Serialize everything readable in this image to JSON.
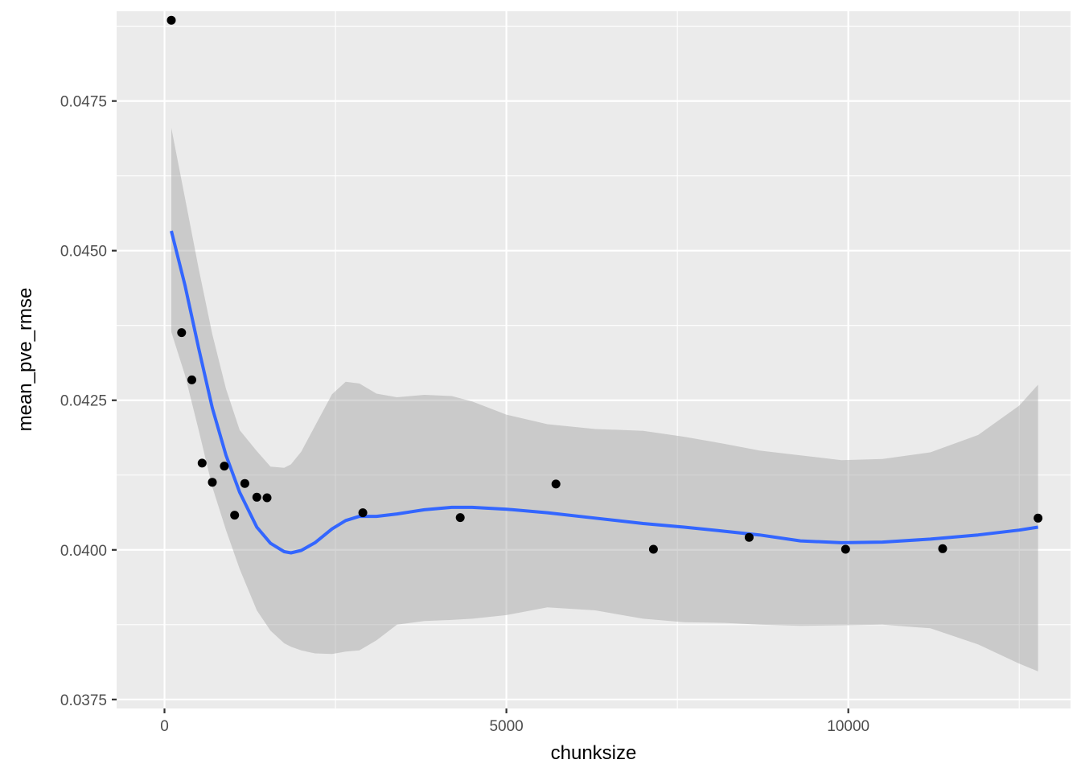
{
  "chart_data": {
    "type": "scatter",
    "title": "",
    "xlabel": "chunksize",
    "ylabel": "mean_pve_rmse",
    "xlim": [
      -700,
      13250
    ],
    "ylim": [
      0.03735,
      0.049
    ],
    "xticks": [
      0,
      5000,
      10000
    ],
    "xtick_labels": [
      "0",
      "5000",
      "10000"
    ],
    "yticks": [
      0.0375,
      0.04,
      0.0425,
      0.045,
      0.0475
    ],
    "ytick_labels": [
      "0.0375",
      "0.0400",
      "0.0425",
      "0.0450",
      "0.0475"
    ],
    "grid": true,
    "panel_background": "#ebebeb",
    "colors": {
      "points": "#000000",
      "smooth_line": "#3366ff",
      "ribbon": "#c8c8c8"
    },
    "points": [
      {
        "x": 100,
        "y": 0.04885
      },
      {
        "x": 250,
        "y": 0.04363
      },
      {
        "x": 400,
        "y": 0.04284
      },
      {
        "x": 550,
        "y": 0.04145
      },
      {
        "x": 700,
        "y": 0.04113
      },
      {
        "x": 875,
        "y": 0.0414
      },
      {
        "x": 1025,
        "y": 0.04058
      },
      {
        "x": 1175,
        "y": 0.04111
      },
      {
        "x": 1350,
        "y": 0.04088
      },
      {
        "x": 1500,
        "y": 0.04087
      },
      {
        "x": 2900,
        "y": 0.04062
      },
      {
        "x": 4325,
        "y": 0.04054
      },
      {
        "x": 5725,
        "y": 0.0411
      },
      {
        "x": 7150,
        "y": 0.04001
      },
      {
        "x": 8550,
        "y": 0.04021
      },
      {
        "x": 9960,
        "y": 0.04001
      },
      {
        "x": 11380,
        "y": 0.04002
      },
      {
        "x": 12775,
        "y": 0.04053
      }
    ],
    "smooth": {
      "x": [
        100,
        300,
        500,
        700,
        900,
        1100,
        1350,
        1550,
        1750,
        1850,
        2000,
        2200,
        2450,
        2650,
        2850,
        3100,
        3400,
        3800,
        4200,
        4500,
        5000,
        5600,
        6300,
        7000,
        7600,
        8200,
        8700,
        9300,
        9900,
        10500,
        11200,
        11900,
        12500,
        12775
      ],
      "y": [
        0.04533,
        0.04442,
        0.04337,
        0.04237,
        0.04158,
        0.04096,
        0.04038,
        0.04011,
        0.03997,
        0.03995,
        0.03999,
        0.04012,
        0.04035,
        0.04049,
        0.04056,
        0.04056,
        0.0406,
        0.04067,
        0.04071,
        0.04071,
        0.04068,
        0.04062,
        0.04053,
        0.04044,
        0.04038,
        0.04031,
        0.04025,
        0.04015,
        0.04012,
        0.04013,
        0.04018,
        0.04025,
        0.04033,
        0.04038
      ],
      "upper": [
        0.04705,
        0.04588,
        0.0447,
        0.0436,
        0.04269,
        0.042,
        0.04165,
        0.04139,
        0.04137,
        0.04143,
        0.04164,
        0.04207,
        0.0426,
        0.04281,
        0.04278,
        0.04261,
        0.04255,
        0.04259,
        0.04257,
        0.04248,
        0.04226,
        0.0421,
        0.04202,
        0.04199,
        0.04189,
        0.04177,
        0.04166,
        0.04158,
        0.0415,
        0.04152,
        0.04163,
        0.04192,
        0.04241,
        0.04276
      ],
      "lower": [
        0.04364,
        0.04292,
        0.042,
        0.04105,
        0.04033,
        0.03968,
        0.03899,
        0.03865,
        0.03844,
        0.03838,
        0.03832,
        0.03827,
        0.03826,
        0.0383,
        0.03832,
        0.03849,
        0.03875,
        0.03881,
        0.03883,
        0.03885,
        0.03891,
        0.03904,
        0.03899,
        0.03885,
        0.03879,
        0.03878,
        0.03875,
        0.03873,
        0.03874,
        0.03875,
        0.03869,
        0.03842,
        0.0381,
        0.03797
      ]
    }
  }
}
